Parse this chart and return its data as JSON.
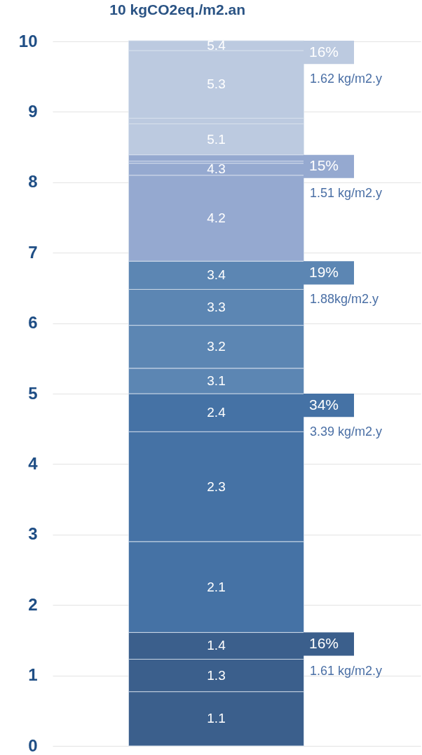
{
  "chart_data": {
    "type": "bar",
    "title": "10 kgCO2eq./m2.an",
    "stacked": true,
    "categories": [
      null
    ],
    "series": [
      {
        "name": "1.1",
        "color": "#3b5f8c",
        "values": [
          0.77
        ]
      },
      {
        "name": "1.3",
        "color": "#3b5f8c",
        "values": [
          0.46
        ]
      },
      {
        "name": "1.4",
        "color": "#3b5f8c",
        "values": [
          0.38
        ]
      },
      {
        "name": "2.1",
        "color": "#4572a5",
        "values": [
          1.29
        ]
      },
      {
        "name": "2.3",
        "color": "#4572a5",
        "values": [
          1.56
        ]
      },
      {
        "name": "2.4",
        "color": "#4572a5",
        "values": [
          0.54
        ]
      },
      {
        "name": "3.1",
        "color": "#5c86b3",
        "values": [
          0.36
        ]
      },
      {
        "name": "3.2",
        "color": "#5c86b3",
        "values": [
          0.61
        ]
      },
      {
        "name": "3.3",
        "color": "#5c86b3",
        "values": [
          0.51
        ]
      },
      {
        "name": "3.4",
        "color": "#5c86b3",
        "values": [
          0.4
        ]
      },
      {
        "name": "4.2",
        "color": "#95a9d0",
        "values": [
          1.22
        ]
      },
      {
        "name": "4.3",
        "color": "#95a9d0",
        "values": [
          0.17
        ]
      },
      {
        "color": "#95a9d0",
        "values": [
          0.03
        ]
      },
      {
        "color": "#95a9d0",
        "values": [
          0.09
        ]
      },
      {
        "name": "5.1",
        "color": "#bccae0",
        "values": [
          0.44
        ]
      },
      {
        "color": "#bccae0",
        "values": [
          0.08
        ]
      },
      {
        "name": "5.3",
        "color": "#bccae0",
        "values": [
          0.96
        ]
      },
      {
        "name": "5.4",
        "color": "#bccae0",
        "values": [
          0.14
        ]
      }
    ],
    "ylim": [
      0,
      10
    ],
    "yticks": [
      0,
      1,
      2,
      3,
      4,
      5,
      6,
      7,
      8,
      9,
      10
    ],
    "grid": "y",
    "legend": false,
    "tick_labels": "y",
    "annotations": [
      "16%",
      "1.62 kg/m2.y",
      "15%",
      "1.51 kg/m2.y",
      "19%",
      "1.88kg/m2.y",
      "34%",
      "3.39 kg/m2.y",
      "16%",
      "1.61 kg/m2.y"
    ]
  }
}
